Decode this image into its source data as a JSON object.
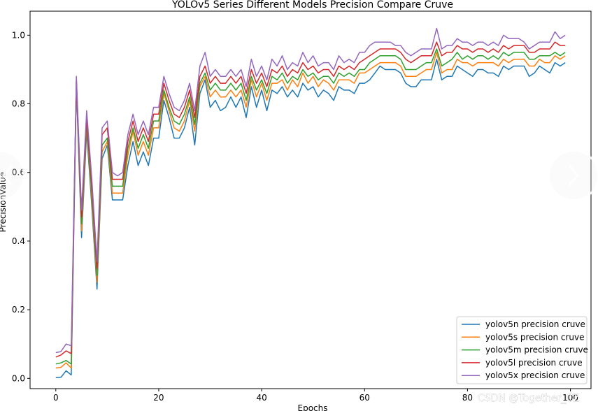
{
  "carousel": {
    "prev_icon": "chevron-left-icon",
    "next_icon": "chevron-right-icon"
  },
  "watermark": "CSDN @Together_CZ",
  "chart_data": {
    "type": "line",
    "title": "YOLOv5 Series Different Models Precision Compare Cruve",
    "xlabel": "Epochs",
    "ylabel": "PrecisionValue",
    "xlim": [
      -5,
      104
    ],
    "ylim": [
      -0.03,
      1.07
    ],
    "xticks": [
      0,
      20,
      40,
      60,
      80,
      100
    ],
    "yticks": [
      0.0,
      0.2,
      0.4,
      0.6,
      0.8,
      1.0
    ],
    "grid": false,
    "legend_position": "lower-right",
    "colors": [
      "#1f77b4",
      "#ff7f0e",
      "#2ca02c",
      "#d62728",
      "#9467bd"
    ],
    "x": [
      0,
      1,
      2,
      3,
      4,
      5,
      6,
      7,
      8,
      9,
      10,
      11,
      12,
      13,
      14,
      15,
      16,
      17,
      18,
      19,
      20,
      21,
      22,
      23,
      24,
      25,
      26,
      27,
      28,
      29,
      30,
      31,
      32,
      33,
      34,
      35,
      36,
      37,
      38,
      39,
      40,
      41,
      42,
      43,
      44,
      45,
      46,
      47,
      48,
      49,
      50,
      51,
      52,
      53,
      54,
      55,
      56,
      57,
      58,
      59,
      60,
      61,
      62,
      63,
      64,
      65,
      66,
      67,
      68,
      69,
      70,
      71,
      72,
      73,
      74,
      75,
      76,
      77,
      78,
      79,
      80,
      81,
      82,
      83,
      84,
      85,
      86,
      87,
      88,
      89,
      90,
      91,
      92,
      93,
      94,
      95,
      96,
      97,
      98,
      99
    ],
    "series": [
      {
        "name": "yolov5n precision cruve",
        "values": [
          0.002,
          0.003,
          0.022,
          0.01,
          0.85,
          0.41,
          0.72,
          0.5,
          0.26,
          0.64,
          0.68,
          0.52,
          0.52,
          0.52,
          0.62,
          0.69,
          0.62,
          0.66,
          0.62,
          0.7,
          0.7,
          0.81,
          0.76,
          0.7,
          0.7,
          0.73,
          0.79,
          0.68,
          0.83,
          0.87,
          0.79,
          0.81,
          0.78,
          0.79,
          0.82,
          0.79,
          0.82,
          0.76,
          0.85,
          0.79,
          0.84,
          0.78,
          0.84,
          0.83,
          0.85,
          0.82,
          0.84,
          0.82,
          0.86,
          0.84,
          0.85,
          0.82,
          0.84,
          0.83,
          0.81,
          0.85,
          0.84,
          0.84,
          0.83,
          0.86,
          0.86,
          0.87,
          0.89,
          0.91,
          0.9,
          0.9,
          0.9,
          0.89,
          0.86,
          0.85,
          0.85,
          0.87,
          0.87,
          0.87,
          0.93,
          0.87,
          0.88,
          0.88,
          0.91,
          0.9,
          0.89,
          0.88,
          0.9,
          0.9,
          0.89,
          0.89,
          0.88,
          0.91,
          0.9,
          0.91,
          0.91,
          0.91,
          0.88,
          0.89,
          0.91,
          0.9,
          0.89,
          0.92,
          0.91,
          0.92
        ]
      },
      {
        "name": "yolov5s precision cruve",
        "values": [
          0.03,
          0.032,
          0.045,
          0.03,
          0.87,
          0.43,
          0.74,
          0.52,
          0.28,
          0.66,
          0.69,
          0.54,
          0.54,
          0.54,
          0.65,
          0.72,
          0.65,
          0.69,
          0.65,
          0.73,
          0.73,
          0.83,
          0.78,
          0.73,
          0.72,
          0.75,
          0.81,
          0.72,
          0.85,
          0.88,
          0.82,
          0.84,
          0.82,
          0.82,
          0.84,
          0.82,
          0.84,
          0.79,
          0.87,
          0.82,
          0.86,
          0.81,
          0.86,
          0.86,
          0.87,
          0.84,
          0.87,
          0.85,
          0.89,
          0.86,
          0.88,
          0.85,
          0.87,
          0.86,
          0.84,
          0.87,
          0.87,
          0.87,
          0.86,
          0.89,
          0.89,
          0.9,
          0.91,
          0.92,
          0.92,
          0.92,
          0.92,
          0.91,
          0.88,
          0.88,
          0.88,
          0.89,
          0.9,
          0.9,
          0.95,
          0.89,
          0.9,
          0.9,
          0.93,
          0.92,
          0.92,
          0.91,
          0.92,
          0.92,
          0.92,
          0.92,
          0.91,
          0.93,
          0.92,
          0.93,
          0.93,
          0.93,
          0.91,
          0.91,
          0.93,
          0.92,
          0.92,
          0.94,
          0.93,
          0.94
        ]
      },
      {
        "name": "yolov5m precision cruve",
        "values": [
          0.042,
          0.045,
          0.052,
          0.042,
          0.87,
          0.45,
          0.75,
          0.54,
          0.3,
          0.68,
          0.7,
          0.56,
          0.56,
          0.56,
          0.67,
          0.73,
          0.67,
          0.71,
          0.67,
          0.75,
          0.75,
          0.84,
          0.79,
          0.75,
          0.74,
          0.77,
          0.82,
          0.74,
          0.86,
          0.89,
          0.84,
          0.86,
          0.84,
          0.84,
          0.86,
          0.84,
          0.86,
          0.81,
          0.88,
          0.84,
          0.87,
          0.83,
          0.88,
          0.87,
          0.89,
          0.86,
          0.88,
          0.87,
          0.9,
          0.88,
          0.89,
          0.87,
          0.88,
          0.88,
          0.86,
          0.89,
          0.88,
          0.89,
          0.88,
          0.9,
          0.9,
          0.92,
          0.93,
          0.94,
          0.94,
          0.94,
          0.94,
          0.93,
          0.9,
          0.9,
          0.9,
          0.91,
          0.92,
          0.92,
          0.96,
          0.91,
          0.92,
          0.93,
          0.95,
          0.93,
          0.94,
          0.93,
          0.94,
          0.94,
          0.93,
          0.94,
          0.93,
          0.95,
          0.94,
          0.95,
          0.95,
          0.95,
          0.93,
          0.93,
          0.94,
          0.94,
          0.94,
          0.95,
          0.94,
          0.95
        ]
      },
      {
        "name": "yolov5l precision cruve",
        "values": [
          0.062,
          0.068,
          0.08,
          0.072,
          0.87,
          0.47,
          0.76,
          0.56,
          0.32,
          0.71,
          0.73,
          0.58,
          0.58,
          0.58,
          0.69,
          0.75,
          0.69,
          0.73,
          0.69,
          0.77,
          0.77,
          0.86,
          0.81,
          0.77,
          0.76,
          0.79,
          0.84,
          0.76,
          0.88,
          0.91,
          0.86,
          0.88,
          0.86,
          0.86,
          0.88,
          0.86,
          0.88,
          0.83,
          0.9,
          0.86,
          0.89,
          0.85,
          0.9,
          0.89,
          0.91,
          0.88,
          0.9,
          0.89,
          0.92,
          0.9,
          0.91,
          0.89,
          0.9,
          0.9,
          0.88,
          0.91,
          0.9,
          0.91,
          0.9,
          0.92,
          0.93,
          0.94,
          0.95,
          0.96,
          0.96,
          0.96,
          0.96,
          0.95,
          0.93,
          0.92,
          0.93,
          0.94,
          0.94,
          0.94,
          0.98,
          0.94,
          0.95,
          0.95,
          0.97,
          0.96,
          0.96,
          0.95,
          0.96,
          0.96,
          0.95,
          0.96,
          0.95,
          0.97,
          0.96,
          0.97,
          0.97,
          0.97,
          0.95,
          0.95,
          0.96,
          0.96,
          0.96,
          0.98,
          0.97,
          0.97
        ]
      },
      {
        "name": "yolov5x precision cruve",
        "values": [
          0.075,
          0.078,
          0.1,
          0.095,
          0.88,
          0.49,
          0.78,
          0.58,
          0.34,
          0.73,
          0.75,
          0.6,
          0.59,
          0.6,
          0.71,
          0.77,
          0.71,
          0.75,
          0.71,
          0.79,
          0.79,
          0.88,
          0.83,
          0.79,
          0.78,
          0.81,
          0.86,
          0.78,
          0.91,
          0.95,
          0.88,
          0.9,
          0.88,
          0.88,
          0.9,
          0.88,
          0.9,
          0.85,
          0.93,
          0.88,
          0.91,
          0.87,
          0.93,
          0.91,
          0.94,
          0.9,
          0.92,
          0.91,
          0.95,
          0.92,
          0.94,
          0.91,
          0.92,
          0.92,
          0.9,
          0.94,
          0.92,
          0.93,
          0.92,
          0.95,
          0.95,
          0.97,
          0.98,
          0.98,
          0.98,
          0.98,
          0.97,
          0.97,
          0.95,
          0.94,
          0.95,
          0.96,
          0.96,
          0.96,
          1.02,
          0.96,
          0.97,
          0.97,
          0.99,
          0.98,
          0.98,
          0.97,
          0.98,
          0.98,
          0.97,
          0.98,
          0.97,
          1.0,
          0.99,
          0.99,
          0.99,
          0.98,
          0.96,
          0.97,
          0.98,
          0.98,
          0.98,
          1.01,
          0.99,
          1.0
        ]
      }
    ]
  }
}
